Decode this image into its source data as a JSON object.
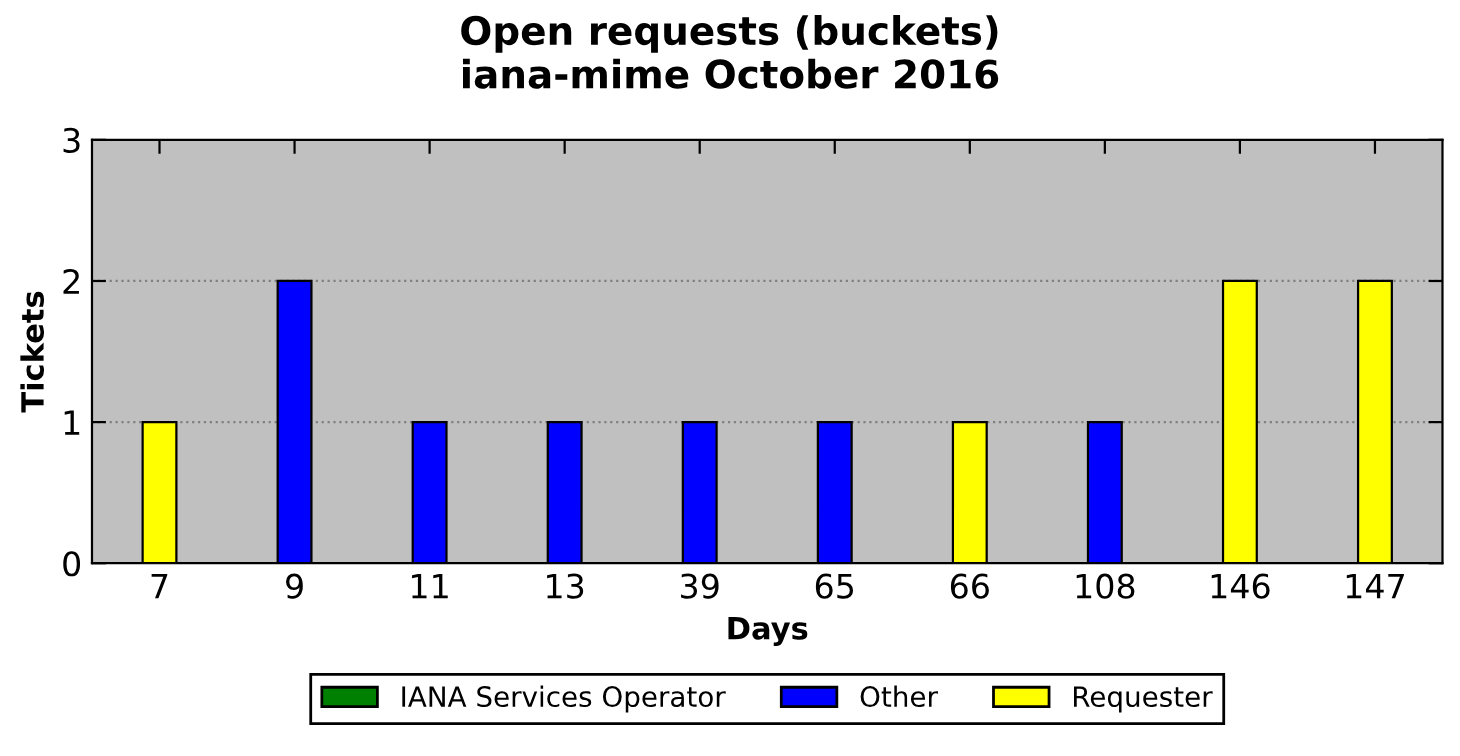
{
  "chart_data": {
    "type": "bar",
    "stacked": true,
    "title": "Open requests (buckets)\niana-mime October 2016",
    "xlabel": "Days",
    "ylabel": "Tickets",
    "categories": [
      "7",
      "9",
      "11",
      "13",
      "39",
      "65",
      "66",
      "108",
      "146",
      "147"
    ],
    "series": [
      {
        "name": "IANA Services Operator",
        "color": "#008000",
        "values": [
          0,
          0,
          0,
          0,
          0,
          0,
          0,
          0,
          0,
          0
        ]
      },
      {
        "name": "Other",
        "color": "#0000ff",
        "values": [
          0,
          2,
          1,
          1,
          1,
          1,
          0,
          1,
          0,
          0
        ]
      },
      {
        "name": "Requester",
        "color": "#ffff00",
        "values": [
          1,
          0,
          0,
          0,
          0,
          0,
          1,
          0,
          2,
          2
        ]
      }
    ],
    "ylim": [
      0,
      3
    ],
    "yticks": [
      0,
      1,
      2,
      3
    ],
    "grid": "y",
    "legend": "bottom"
  }
}
